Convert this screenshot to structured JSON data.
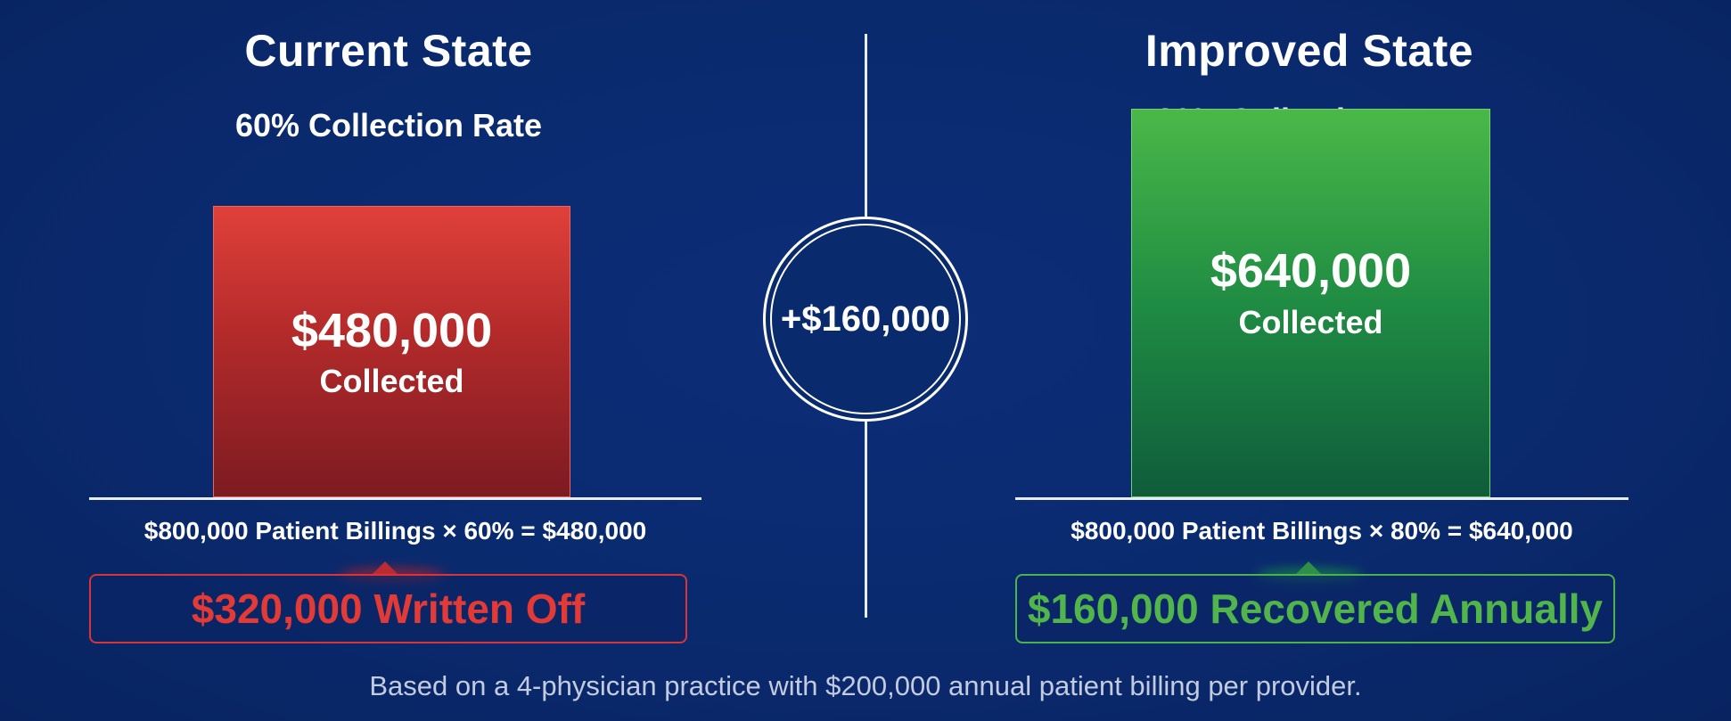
{
  "chart_data": {
    "type": "bar",
    "panels": [
      {
        "title": "Current State",
        "subtitle": "60% Collection Rate",
        "value": 480000,
        "value_label": "$480,000",
        "value_caption": "Collected",
        "collection_rate": 0.6,
        "formula": "$800,000 Patient Billings × 60% = $480,000",
        "callout": "$320,000 Written Off",
        "color": "#c0302e"
      },
      {
        "title": "Improved State",
        "subtitle": "80% Collection Rate",
        "value": 640000,
        "value_label": "$640,000",
        "value_caption": "Collected",
        "collection_rate": 0.8,
        "formula": "$800,000 Patient Billings × 80% = $640,000",
        "callout": "$160,000 Recovered Annually",
        "color": "#2e9a46"
      }
    ],
    "ylim": [
      0,
      800000
    ],
    "difference_label": "+$160,000",
    "footnote": "Based on a 4-physician practice with $200,000 annual patient billing per provider."
  },
  "colors": {
    "background": "#0a2a6e",
    "negative": "#e23a36",
    "positive": "#51b54c",
    "line": "#e8ecf5"
  }
}
